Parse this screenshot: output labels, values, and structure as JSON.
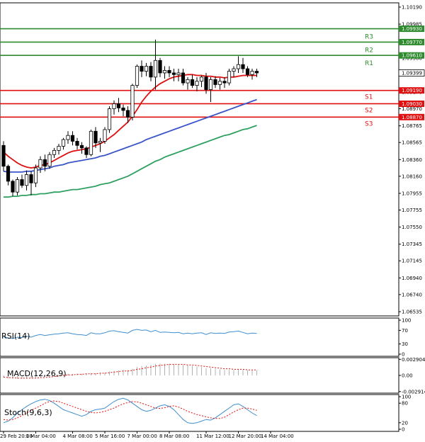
{
  "chart_data": {
    "type": "candlestick",
    "main": {
      "ylim": [
        1.06535,
        1.1019
      ],
      "y_tick_labels": [
        "1.10190",
        "1.09985",
        "1.09580",
        "1.09170",
        "1.08970",
        "1.08765",
        "1.08565",
        "1.08360",
        "1.08160",
        "1.07955",
        "1.07755",
        "1.07550",
        "1.07345",
        "1.07145",
        "1.06940",
        "1.06740",
        "1.06535"
      ],
      "y_tick_values": [
        1.1019,
        1.09985,
        1.0958,
        1.0917,
        1.0897,
        1.08765,
        1.08565,
        1.0836,
        1.0816,
        1.07955,
        1.07755,
        1.0755,
        1.07345,
        1.07145,
        1.0694,
        1.0674,
        1.06535
      ],
      "levels": [
        {
          "name": "R3",
          "value": 1.0993,
          "tag": "1.09930",
          "color": "#2e8b2e"
        },
        {
          "name": "R2",
          "value": 1.0977,
          "tag": "1.09770",
          "color": "#2e8b2e"
        },
        {
          "name": "R1",
          "value": 1.0961,
          "tag": "1.09610",
          "color": "#2e8b2e"
        },
        {
          "name": "S1",
          "value": 1.0919,
          "tag": "1.09190",
          "color": "#e01010"
        },
        {
          "name": "S2",
          "value": 1.0903,
          "tag": "1.09030",
          "color": "#e01010"
        },
        {
          "name": "S3",
          "value": 1.0887,
          "tag": "1.08870",
          "color": "#e01010"
        }
      ],
      "current_price": {
        "value": 1.09399,
        "tag": "1.09399"
      },
      "candles": [
        [
          1.0853,
          1.0858,
          1.0822,
          1.0828
        ],
        [
          1.0828,
          1.083,
          1.0805,
          1.081
        ],
        [
          1.081,
          1.0812,
          1.0792,
          1.0797
        ],
        [
          1.0797,
          1.0815,
          1.0793,
          1.0812
        ],
        [
          1.0812,
          1.0818,
          1.0802,
          1.0805
        ],
        [
          1.0805,
          1.0823,
          1.0799,
          1.0818
        ],
        [
          1.0818,
          1.0822,
          1.0793,
          1.0808
        ],
        [
          1.0808,
          1.083,
          1.0803,
          1.0826
        ],
        [
          1.0826,
          1.084,
          1.082,
          1.0836
        ],
        [
          1.0836,
          1.0842,
          1.0822,
          1.0828
        ],
        [
          1.0828,
          1.0845,
          1.0825,
          1.0842
        ],
        [
          1.0842,
          1.085,
          1.0838,
          1.0847
        ],
        [
          1.0847,
          1.0855,
          1.0842,
          1.0852
        ],
        [
          1.0852,
          1.0862,
          1.0848,
          1.086
        ],
        [
          1.086,
          1.087,
          1.0855,
          1.0865
        ],
        [
          1.0865,
          1.087,
          1.0853,
          1.0858
        ],
        [
          1.0858,
          1.0862,
          1.0848,
          1.0853
        ],
        [
          1.0853,
          1.0857,
          1.0843,
          1.085
        ],
        [
          1.085,
          1.0852,
          1.0838,
          1.0842
        ],
        [
          1.0842,
          1.0872,
          1.084,
          1.087
        ],
        [
          1.087,
          1.0875,
          1.085,
          1.0856
        ],
        [
          1.0856,
          1.0862,
          1.0845,
          1.0858
        ],
        [
          1.0858,
          1.0875,
          1.0855,
          1.0872
        ],
        [
          1.0872,
          1.09,
          1.0868,
          1.0897
        ],
        [
          1.0897,
          1.0907,
          1.089,
          1.0903
        ],
        [
          1.0903,
          1.091,
          1.0893,
          1.0898
        ],
        [
          1.0898,
          1.0902,
          1.0888,
          1.0895
        ],
        [
          1.0895,
          1.09,
          1.088,
          1.0887
        ],
        [
          1.0887,
          1.0927,
          1.0883,
          1.0925
        ],
        [
          1.0925,
          1.095,
          1.0922,
          1.0948
        ],
        [
          1.0948,
          1.0955,
          1.0935,
          1.0942
        ],
        [
          1.0942,
          1.0952,
          1.0936,
          1.0948
        ],
        [
          1.0948,
          1.0953,
          1.093,
          1.0935
        ],
        [
          1.0935,
          1.098,
          1.092,
          1.0955
        ],
        [
          1.0955,
          1.0958,
          1.0935,
          1.094
        ],
        [
          1.094,
          1.0948,
          1.0933,
          1.0943
        ],
        [
          1.0943,
          1.0948,
          1.0935,
          1.094
        ],
        [
          1.094,
          1.0945,
          1.093,
          1.0938
        ],
        [
          1.0938,
          1.0945,
          1.093,
          1.094
        ],
        [
          1.094,
          1.0945,
          1.0925,
          1.0928
        ],
        [
          1.0928,
          1.0935,
          1.092,
          1.0932
        ],
        [
          1.0932,
          1.0938,
          1.0922,
          1.0925
        ],
        [
          1.0925,
          1.0935,
          1.0918,
          1.093
        ],
        [
          1.093,
          1.0937,
          1.0923,
          1.0935
        ],
        [
          1.0935,
          1.094,
          1.0915,
          1.092
        ],
        [
          1.092,
          1.0935,
          1.0905,
          1.0932
        ],
        [
          1.0932,
          1.0936,
          1.0922,
          1.0926
        ],
        [
          1.0926,
          1.0934,
          1.092,
          1.093
        ],
        [
          1.093,
          1.0935,
          1.0922,
          1.0928
        ],
        [
          1.0928,
          1.0945,
          1.0925,
          1.0942
        ],
        [
          1.0942,
          1.0948,
          1.0935,
          1.0945
        ],
        [
          1.0945,
          1.096,
          1.094,
          1.095
        ],
        [
          1.095,
          1.0958,
          1.094,
          1.0945
        ],
        [
          1.0945,
          1.0948,
          1.0935,
          1.0938
        ],
        [
          1.0938,
          1.0945,
          1.0932,
          1.0942
        ],
        [
          1.0942,
          1.0945,
          1.0935,
          1.094
        ]
      ],
      "ma_fast": [
        1.0845,
        1.084,
        1.0836,
        1.0832,
        1.0829,
        1.0827,
        1.0826,
        1.0827,
        1.0829,
        1.083,
        1.0832,
        1.0835,
        1.0838,
        1.0841,
        1.0844,
        1.0846,
        1.0847,
        1.0848,
        1.0849,
        1.0851,
        1.0853,
        1.0855,
        1.0858,
        1.0862,
        1.0866,
        1.0871,
        1.0876,
        1.0881,
        1.0888,
        1.0896,
        1.0905,
        1.0912,
        1.0918,
        1.0923,
        1.0927,
        1.093,
        1.0933,
        1.0935,
        1.0936,
        1.0937,
        1.0938,
        1.0938,
        1.0937,
        1.0937,
        1.0936,
        1.0936,
        1.0935,
        1.0935,
        1.0934,
        1.0935,
        1.0935,
        1.0936,
        1.0937,
        1.0937,
        1.0937,
        1.0937
      ],
      "ma_mid": [
        1.0822,
        1.0821,
        1.0821,
        1.0821,
        1.0821,
        1.0822,
        1.0822,
        1.0823,
        1.0824,
        1.0825,
        1.0826,
        1.0828,
        1.0829,
        1.083,
        1.0832,
        1.0833,
        1.0834,
        1.0835,
        1.0836,
        1.0837,
        1.0838,
        1.084,
        1.0841,
        1.0843,
        1.0845,
        1.0847,
        1.0849,
        1.0851,
        1.0853,
        1.0855,
        1.0857,
        1.086,
        1.0862,
        1.0864,
        1.0866,
        1.0868,
        1.087,
        1.0872,
        1.0874,
        1.0876,
        1.0878,
        1.088,
        1.0882,
        1.0884,
        1.0886,
        1.0888,
        1.089,
        1.0892,
        1.0894,
        1.0896,
        1.0898,
        1.09,
        1.0902,
        1.0904,
        1.0906,
        1.0908
      ],
      "ma_slow": [
        1.0791,
        1.0791,
        1.0792,
        1.0792,
        1.0793,
        1.0793,
        1.0794,
        1.0794,
        1.0795,
        1.0795,
        1.0796,
        1.0797,
        1.0797,
        1.0798,
        1.0799,
        1.08,
        1.08,
        1.0801,
        1.0802,
        1.0803,
        1.0804,
        1.0806,
        1.0807,
        1.0808,
        1.081,
        1.0812,
        1.0814,
        1.0816,
        1.0819,
        1.0822,
        1.0825,
        1.0828,
        1.0831,
        1.0834,
        1.0836,
        1.0839,
        1.0841,
        1.0843,
        1.0845,
        1.0847,
        1.0849,
        1.0851,
        1.0853,
        1.0855,
        1.0857,
        1.0859,
        1.0861,
        1.0863,
        1.0865,
        1.0866,
        1.0868,
        1.087,
        1.0872,
        1.0873,
        1.0875,
        1.0877
      ]
    },
    "rsi": {
      "label": "RSI(14)",
      "ylim": [
        0,
        100
      ],
      "y_tick_labels": [
        "100",
        "70",
        "30",
        "0"
      ],
      "y_tick_values": [
        100,
        70,
        30,
        0
      ],
      "values": [
        50,
        48,
        46,
        50,
        49,
        53,
        50,
        55,
        58,
        55,
        57,
        59,
        60,
        62,
        63,
        60,
        58,
        57,
        55,
        63,
        60,
        60,
        63,
        68,
        69,
        66,
        64,
        62,
        70,
        73,
        70,
        71,
        66,
        70,
        64,
        65,
        64,
        63,
        64,
        60,
        62,
        60,
        62,
        63,
        58,
        63,
        61,
        62,
        61,
        65,
        66,
        68,
        64,
        60,
        62,
        61
      ]
    },
    "macd": {
      "label": "MACD(12,26,9)",
      "y_tick_labels": [
        "0.002904",
        "0.00",
        "-0.002914"
      ],
      "y_tick_values": [
        0.002904,
        0,
        -0.002914
      ],
      "ylim": [
        -0.0032,
        0.0032
      ],
      "histogram": [
        -0.0004,
        -0.0005,
        -0.0006,
        -0.0006,
        -0.0006,
        -0.0005,
        -0.0005,
        -0.0004,
        -0.0003,
        -0.0002,
        -0.0001,
        0.0,
        0.0001,
        0.0002,
        0.0003,
        0.0003,
        0.0003,
        0.0003,
        0.0003,
        0.0004,
        0.0004,
        0.0004,
        0.0005,
        0.0007,
        0.0008,
        0.0009,
        0.001,
        0.001,
        0.0012,
        0.0015,
        0.0017,
        0.0018,
        0.0019,
        0.0021,
        0.0021,
        0.0021,
        0.0021,
        0.002,
        0.002,
        0.0019,
        0.0018,
        0.0017,
        0.0016,
        0.0015,
        0.0013,
        0.0013,
        0.0012,
        0.0011,
        0.001,
        0.001,
        0.001,
        0.001,
        0.001,
        0.0009,
        0.0009,
        0.0009
      ],
      "signal": [
        -0.0003,
        -0.0004,
        -0.0004,
        -0.0005,
        -0.0005,
        -0.0005,
        -0.0005,
        -0.0005,
        -0.0004,
        -0.0004,
        -0.0003,
        -0.0002,
        -0.0001,
        0.0,
        0.0001,
        0.0001,
        0.0002,
        0.0002,
        0.0003,
        0.0003,
        0.0003,
        0.0004,
        0.0004,
        0.0005,
        0.0006,
        0.0007,
        0.0008,
        0.0008,
        0.0009,
        0.0011,
        0.0012,
        0.0014,
        0.0015,
        0.0017,
        0.0018,
        0.0019,
        0.002,
        0.002,
        0.002,
        0.002,
        0.0019,
        0.0019,
        0.0018,
        0.0017,
        0.0016,
        0.0015,
        0.0014,
        0.0013,
        0.0012,
        0.0012,
        0.0011,
        0.0011,
        0.0011,
        0.001,
        0.001,
        0.001
      ]
    },
    "stoch": {
      "label": "Stoch(9,6,3)",
      "ylim": [
        0,
        100
      ],
      "y_tick_labels": [
        "100",
        "80",
        "20",
        "0"
      ],
      "y_tick_values": [
        100,
        80,
        20,
        0
      ],
      "k": [
        20,
        25,
        35,
        50,
        60,
        70,
        78,
        85,
        90,
        92,
        88,
        80,
        70,
        60,
        55,
        50,
        45,
        40,
        45,
        55,
        60,
        62,
        65,
        75,
        85,
        92,
        95,
        90,
        80,
        70,
        60,
        55,
        58,
        65,
        72,
        75,
        70,
        60,
        45,
        30,
        20,
        18,
        20,
        25,
        30,
        28,
        35,
        45,
        55,
        65,
        75,
        78,
        70,
        60,
        50,
        42
      ],
      "d": [
        30,
        28,
        30,
        35,
        42,
        50,
        58,
        65,
        72,
        80,
        85,
        87,
        85,
        80,
        75,
        70,
        65,
        60,
        55,
        52,
        50,
        52,
        55,
        60,
        65,
        72,
        78,
        82,
        85,
        84,
        80,
        75,
        70,
        65,
        64,
        66,
        70,
        72,
        68,
        62,
        55,
        50,
        45,
        42,
        38,
        35,
        33,
        33,
        37,
        45,
        53,
        60,
        65,
        65,
        62,
        58
      ]
    },
    "x_tick_labels": [
      "29 Feb 20:00",
      "1 Mar 04:00",
      "4 Mar 08:00",
      "5 Mar 16:00",
      "7 Mar 00:00",
      "8 Mar 08:00",
      "11 Mar 12:00",
      "12 Mar 20:00",
      "14 Mar 04:00"
    ],
    "x_tick_index": [
      0,
      7,
      15,
      22,
      29,
      36,
      44,
      51,
      58
    ],
    "colors": {
      "bull": "#ffffff",
      "bear": "#000000",
      "ma_fast": "#e01010",
      "ma_mid": "#3a55c8",
      "ma_slow": "#2fa060",
      "indicator_line": "#3f8fd0",
      "stoch_signal": "#e01010",
      "macd_hist": "#b0b0b0",
      "macd_signal": "#e01010",
      "res": "#2e8b2e",
      "sup": "#e01010"
    }
  }
}
